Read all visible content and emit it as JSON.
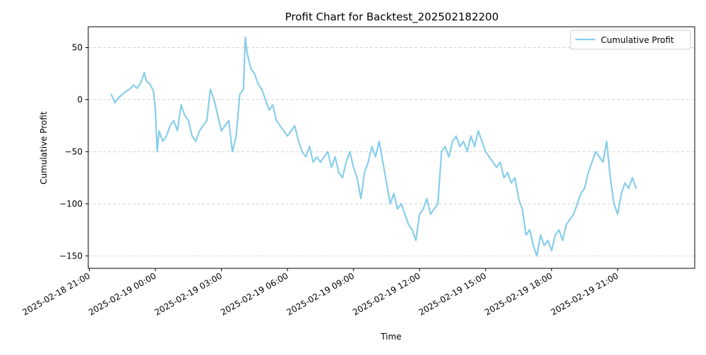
{
  "chart_data": {
    "type": "line",
    "title": "Profit Chart for Backtest_202502182200",
    "xlabel": "Time",
    "ylabel": "Cumulative Profit",
    "x_ticks": [
      "2025-02-18 21:00",
      "2025-02-19 00:00",
      "2025-02-19 03:00",
      "2025-02-19 06:00",
      "2025-02-19 09:00",
      "2025-02-19 12:00",
      "2025-02-19 15:00",
      "2025-02-19 18:00",
      "2025-02-19 21:00"
    ],
    "y_ticks": [
      50,
      0,
      -50,
      -100,
      -150
    ],
    "xlim": [
      "2025-02-18 20:57",
      "2025-02-20 00:30"
    ],
    "ylim": [
      -162,
      70
    ],
    "grid": "horizontal-dashed",
    "legend_position": "top-right",
    "series": [
      {
        "name": "Cumulative Profit",
        "color": "#87ceeb",
        "points": [
          [
            "2025-02-18 22:00",
            5
          ],
          [
            "2025-02-18 22:10",
            -3
          ],
          [
            "2025-02-18 22:20",
            2
          ],
          [
            "2025-02-18 22:30",
            5
          ],
          [
            "2025-02-18 22:40",
            8
          ],
          [
            "2025-02-18 22:50",
            10
          ],
          [
            "2025-02-18 23:00",
            14
          ],
          [
            "2025-02-18 23:10",
            11
          ],
          [
            "2025-02-18 23:20",
            16
          ],
          [
            "2025-02-18 23:30",
            26
          ],
          [
            "2025-02-18 23:35",
            18
          ],
          [
            "2025-02-18 23:45",
            15
          ],
          [
            "2025-02-18 23:55",
            8
          ],
          [
            "2025-02-19 00:00",
            -10
          ],
          [
            "2025-02-19 00:05",
            -50
          ],
          [
            "2025-02-19 00:10",
            -30
          ],
          [
            "2025-02-19 00:20",
            -40
          ],
          [
            "2025-02-19 00:30",
            -35
          ],
          [
            "2025-02-19 00:40",
            -25
          ],
          [
            "2025-02-19 00:50",
            -20
          ],
          [
            "2025-02-19 01:00",
            -30
          ],
          [
            "2025-02-19 01:10",
            -5
          ],
          [
            "2025-02-19 01:20",
            -15
          ],
          [
            "2025-02-19 01:30",
            -20
          ],
          [
            "2025-02-19 01:40",
            -35
          ],
          [
            "2025-02-19 01:50",
            -40
          ],
          [
            "2025-02-19 02:00",
            -30
          ],
          [
            "2025-02-19 02:10",
            -25
          ],
          [
            "2025-02-19 02:20",
            -20
          ],
          [
            "2025-02-19 02:30",
            10
          ],
          [
            "2025-02-19 02:40",
            0
          ],
          [
            "2025-02-19 02:50",
            -15
          ],
          [
            "2025-02-19 03:00",
            -30
          ],
          [
            "2025-02-19 03:10",
            -25
          ],
          [
            "2025-02-19 03:20",
            -20
          ],
          [
            "2025-02-19 03:30",
            -50
          ],
          [
            "2025-02-19 03:40",
            -35
          ],
          [
            "2025-02-19 03:50",
            5
          ],
          [
            "2025-02-19 04:00",
            10
          ],
          [
            "2025-02-19 04:05",
            60
          ],
          [
            "2025-02-19 04:10",
            45
          ],
          [
            "2025-02-19 04:20",
            30
          ],
          [
            "2025-02-19 04:30",
            25
          ],
          [
            "2025-02-19 04:40",
            15
          ],
          [
            "2025-02-19 04:50",
            10
          ],
          [
            "2025-02-19 05:00",
            0
          ],
          [
            "2025-02-19 05:10",
            -10
          ],
          [
            "2025-02-19 05:20",
            -5
          ],
          [
            "2025-02-19 05:30",
            -20
          ],
          [
            "2025-02-19 05:40",
            -25
          ],
          [
            "2025-02-19 05:50",
            -30
          ],
          [
            "2025-02-19 06:00",
            -35
          ],
          [
            "2025-02-19 06:10",
            -30
          ],
          [
            "2025-02-19 06:20",
            -25
          ],
          [
            "2025-02-19 06:30",
            -40
          ],
          [
            "2025-02-19 06:40",
            -50
          ],
          [
            "2025-02-19 06:50",
            -55
          ],
          [
            "2025-02-19 07:00",
            -45
          ],
          [
            "2025-02-19 07:10",
            -60
          ],
          [
            "2025-02-19 07:20",
            -55
          ],
          [
            "2025-02-19 07:30",
            -60
          ],
          [
            "2025-02-19 07:40",
            -55
          ],
          [
            "2025-02-19 07:50",
            -50
          ],
          [
            "2025-02-19 08:00",
            -65
          ],
          [
            "2025-02-19 08:10",
            -55
          ],
          [
            "2025-02-19 08:20",
            -70
          ],
          [
            "2025-02-19 08:30",
            -75
          ],
          [
            "2025-02-19 08:40",
            -60
          ],
          [
            "2025-02-19 08:50",
            -50
          ],
          [
            "2025-02-19 09:00",
            -65
          ],
          [
            "2025-02-19 09:10",
            -75
          ],
          [
            "2025-02-19 09:20",
            -95
          ],
          [
            "2025-02-19 09:30",
            -70
          ],
          [
            "2025-02-19 09:40",
            -60
          ],
          [
            "2025-02-19 09:50",
            -45
          ],
          [
            "2025-02-19 10:00",
            -55
          ],
          [
            "2025-02-19 10:10",
            -40
          ],
          [
            "2025-02-19 10:20",
            -60
          ],
          [
            "2025-02-19 10:30",
            -80
          ],
          [
            "2025-02-19 10:40",
            -100
          ],
          [
            "2025-02-19 10:50",
            -90
          ],
          [
            "2025-02-19 11:00",
            -105
          ],
          [
            "2025-02-19 11:10",
            -100
          ],
          [
            "2025-02-19 11:20",
            -110
          ],
          [
            "2025-02-19 11:30",
            -120
          ],
          [
            "2025-02-19 11:40",
            -125
          ],
          [
            "2025-02-19 11:50",
            -135
          ],
          [
            "2025-02-19 12:00",
            -110
          ],
          [
            "2025-02-19 12:10",
            -105
          ],
          [
            "2025-02-19 12:20",
            -95
          ],
          [
            "2025-02-19 12:30",
            -110
          ],
          [
            "2025-02-19 12:40",
            -105
          ],
          [
            "2025-02-19 12:50",
            -100
          ],
          [
            "2025-02-19 13:00",
            -50
          ],
          [
            "2025-02-19 13:10",
            -45
          ],
          [
            "2025-02-19 13:20",
            -55
          ],
          [
            "2025-02-19 13:30",
            -40
          ],
          [
            "2025-02-19 13:40",
            -35
          ],
          [
            "2025-02-19 13:50",
            -45
          ],
          [
            "2025-02-19 14:00",
            -40
          ],
          [
            "2025-02-19 14:10",
            -50
          ],
          [
            "2025-02-19 14:20",
            -35
          ],
          [
            "2025-02-19 14:30",
            -45
          ],
          [
            "2025-02-19 14:40",
            -30
          ],
          [
            "2025-02-19 14:50",
            -40
          ],
          [
            "2025-02-19 15:00",
            -50
          ],
          [
            "2025-02-19 15:10",
            -55
          ],
          [
            "2025-02-19 15:20",
            -60
          ],
          [
            "2025-02-19 15:30",
            -65
          ],
          [
            "2025-02-19 15:40",
            -60
          ],
          [
            "2025-02-19 15:50",
            -75
          ],
          [
            "2025-02-19 16:00",
            -70
          ],
          [
            "2025-02-19 16:10",
            -80
          ],
          [
            "2025-02-19 16:20",
            -75
          ],
          [
            "2025-02-19 16:30",
            -95
          ],
          [
            "2025-02-19 16:40",
            -105
          ],
          [
            "2025-02-19 16:50",
            -130
          ],
          [
            "2025-02-19 17:00",
            -125
          ],
          [
            "2025-02-19 17:10",
            -140
          ],
          [
            "2025-02-19 17:20",
            -150
          ],
          [
            "2025-02-19 17:30",
            -130
          ],
          [
            "2025-02-19 17:40",
            -140
          ],
          [
            "2025-02-19 17:50",
            -135
          ],
          [
            "2025-02-19 18:00",
            -145
          ],
          [
            "2025-02-19 18:10",
            -130
          ],
          [
            "2025-02-19 18:20",
            -125
          ],
          [
            "2025-02-19 18:30",
            -135
          ],
          [
            "2025-02-19 18:40",
            -120
          ],
          [
            "2025-02-19 18:50",
            -115
          ],
          [
            "2025-02-19 19:00",
            -110
          ],
          [
            "2025-02-19 19:10",
            -100
          ],
          [
            "2025-02-19 19:20",
            -90
          ],
          [
            "2025-02-19 19:30",
            -85
          ],
          [
            "2025-02-19 19:40",
            -70
          ],
          [
            "2025-02-19 19:50",
            -60
          ],
          [
            "2025-02-19 20:00",
            -50
          ],
          [
            "2025-02-19 20:10",
            -55
          ],
          [
            "2025-02-19 20:20",
            -60
          ],
          [
            "2025-02-19 20:30",
            -40
          ],
          [
            "2025-02-19 20:40",
            -75
          ],
          [
            "2025-02-19 20:50",
            -100
          ],
          [
            "2025-02-19 21:00",
            -110
          ],
          [
            "2025-02-19 21:10",
            -90
          ],
          [
            "2025-02-19 21:20",
            -80
          ],
          [
            "2025-02-19 21:30",
            -85
          ],
          [
            "2025-02-19 21:40",
            -75
          ],
          [
            "2025-02-19 21:50",
            -85
          ]
        ]
      }
    ]
  }
}
